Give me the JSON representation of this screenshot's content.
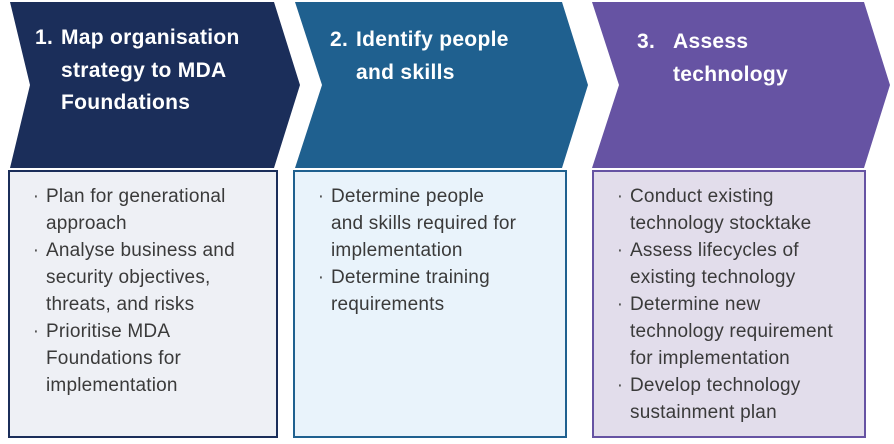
{
  "bullet_char": "·",
  "colors": {
    "step1_chevron": "#1b2e5a",
    "step1_box_bg": "#eef0f5",
    "step2_chevron": "#1f608f",
    "step2_box_bg": "#e9f3fb",
    "step3_chevron": "#6653a3",
    "step3_box_bg": "#e2ddeb",
    "title_text": "#ffffff",
    "body_text": "#3a3a3a"
  },
  "steps": [
    {
      "number": "1.",
      "title": "Map organisation strategy to MDA Foundations",
      "bullets": [
        "Plan for generational approach",
        "Analyse business and security objectives, threats, and risks",
        "Prioritise MDA Foundations for implementation"
      ]
    },
    {
      "number": "2.",
      "title": "Identify people and skills",
      "bullets": [
        "Determine people and skills required for implementation",
        "Determine training requirements"
      ]
    },
    {
      "number": "3.",
      "title": "Assess technology",
      "bullets": [
        "Conduct existing technology stocktake",
        "Assess lifecycles of existing technology",
        "Determine new technology requirement for implementation",
        "Develop technology sustainment plan"
      ]
    }
  ]
}
